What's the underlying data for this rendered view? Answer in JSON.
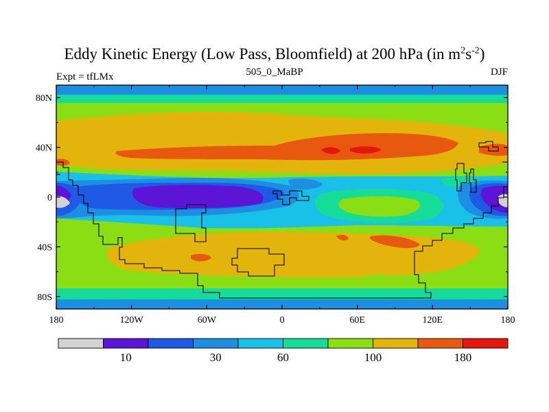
{
  "title": {
    "prefix": "Eddy Kinetic Energy (Low Pass, Bloomfield) at 200 hPa (in m",
    "sup1": "2",
    "mid": "s",
    "sup2": "-2",
    "suffix": ")"
  },
  "subtitle_left": "Expt = tfLMx",
  "subtitle_center": "505_0_MaBP",
  "subtitle_right": "DJF",
  "latitude_ticks": [
    {
      "label": "80N",
      "value": 80
    },
    {
      "label": "40N",
      "value": 40
    },
    {
      "label": "0",
      "value": 0
    },
    {
      "label": "40S",
      "value": -40
    },
    {
      "label": "80S",
      "value": -80
    }
  ],
  "longitude_ticks": [
    {
      "label": "180",
      "value": -180
    },
    {
      "label": "120W",
      "value": -120
    },
    {
      "label": "60W",
      "value": -60
    },
    {
      "label": "0",
      "value": 0
    },
    {
      "label": "60E",
      "value": 60
    },
    {
      "label": "120E",
      "value": 120
    },
    {
      "label": "180",
      "value": 180
    }
  ],
  "colorbar": {
    "colors": [
      "#d3d3d3",
      "#5c14d6",
      "#1e5ae6",
      "#1e8ee3",
      "#19c0e8",
      "#16dc9a",
      "#8cde14",
      "#e3b40c",
      "#e8590f",
      "#e5160c"
    ],
    "labels": [
      {
        "text": "10",
        "index": 1.5
      },
      {
        "text": "30",
        "index": 3.5
      },
      {
        "text": "60",
        "index": 5
      },
      {
        "text": "100",
        "index": 7
      },
      {
        "text": "180",
        "index": 9
      }
    ]
  }
}
